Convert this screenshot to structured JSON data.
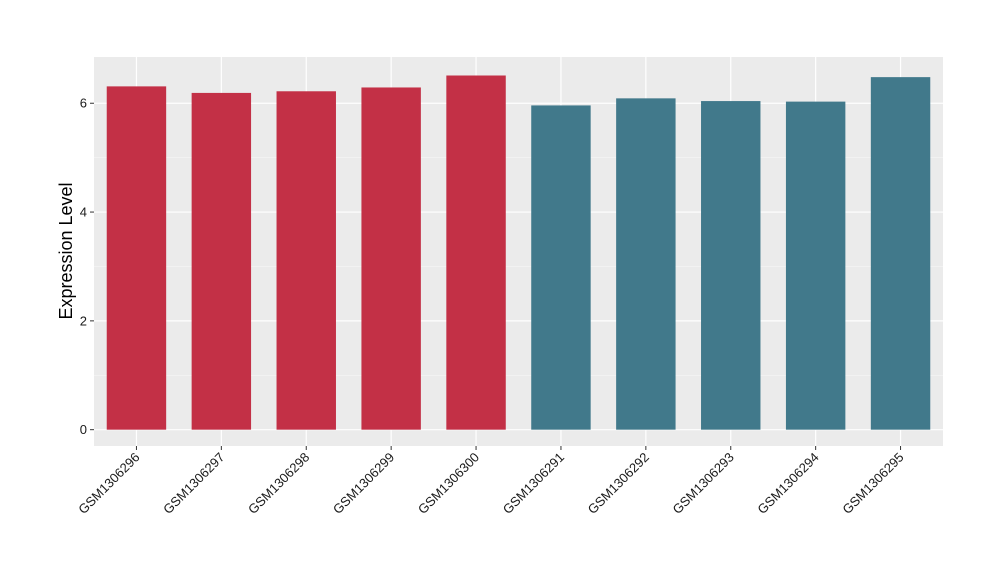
{
  "chart_data": {
    "type": "bar",
    "title": "",
    "xlabel": "",
    "ylabel": "Expression Level",
    "ylim": [
      -0.3,
      6.85
    ],
    "yticks": [
      0,
      2,
      4,
      6
    ],
    "ytick_labels": [
      "0",
      "2",
      "4",
      "6"
    ],
    "grid": true,
    "legend": "none",
    "background": "#ebebeb",
    "categories": [
      "GSM1306296",
      "GSM1306297",
      "GSM1306298",
      "GSM1306299",
      "GSM1306300",
      "GSM1306291",
      "GSM1306292",
      "GSM1306293",
      "GSM1306294",
      "GSM1306295"
    ],
    "values": [
      6.31,
      6.19,
      6.22,
      6.29,
      6.51,
      5.96,
      6.09,
      6.04,
      6.03,
      6.48
    ],
    "colors": [
      "#c33046",
      "#c33046",
      "#c33046",
      "#c33046",
      "#c33046",
      "#41798b",
      "#41798b",
      "#41798b",
      "#41798b",
      "#41798b"
    ]
  }
}
